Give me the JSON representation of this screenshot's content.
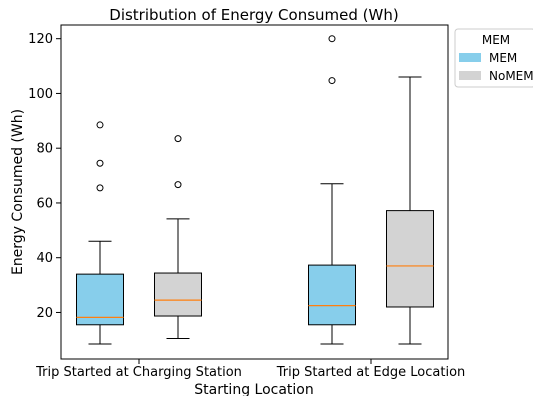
{
  "chart_data": {
    "type": "box",
    "title": "Distribution of Energy Consumed (Wh)",
    "xlabel": "Starting Location",
    "ylabel": "Energy Consumed (Wh)",
    "ylim": [
      3,
      125
    ],
    "yticks": [
      20,
      40,
      60,
      80,
      100,
      120
    ],
    "categories": [
      "Trip Started at Charging Station",
      "Trip Started at Edge Location"
    ],
    "legend": {
      "title": "MEM",
      "placement": "upper-right-outside",
      "entries": [
        "MEM",
        "NoMEM"
      ]
    },
    "series": [
      {
        "name": "MEM",
        "color": "#87ceeb",
        "boxes": [
          {
            "category": "Trip Started at Charging Station",
            "whisker_low": 8.5,
            "q1": 15.5,
            "median": 18.2,
            "q3": 34.0,
            "whisker_high": 46.0,
            "outliers": [
              65.5,
              74.5,
              88.5
            ]
          },
          {
            "category": "Trip Started at Edge Location",
            "whisker_low": 8.5,
            "q1": 15.5,
            "median": 22.5,
            "q3": 37.3,
            "whisker_high": 67.0,
            "outliers": [
              104.7,
              120.0
            ]
          }
        ]
      },
      {
        "name": "NoMEM",
        "color": "#d3d3d3",
        "boxes": [
          {
            "category": "Trip Started at Charging Station",
            "whisker_low": 10.5,
            "q1": 18.7,
            "median": 24.5,
            "q3": 34.4,
            "whisker_high": 54.2,
            "outliers": [
              66.7,
              83.5
            ]
          },
          {
            "category": "Trip Started at Edge Location",
            "whisker_low": 8.5,
            "q1": 22.0,
            "median": 37.0,
            "q3": 57.2,
            "whisker_high": 106.0,
            "outliers": []
          }
        ]
      }
    ],
    "median_color": "#ff7f0e",
    "grid": false
  }
}
